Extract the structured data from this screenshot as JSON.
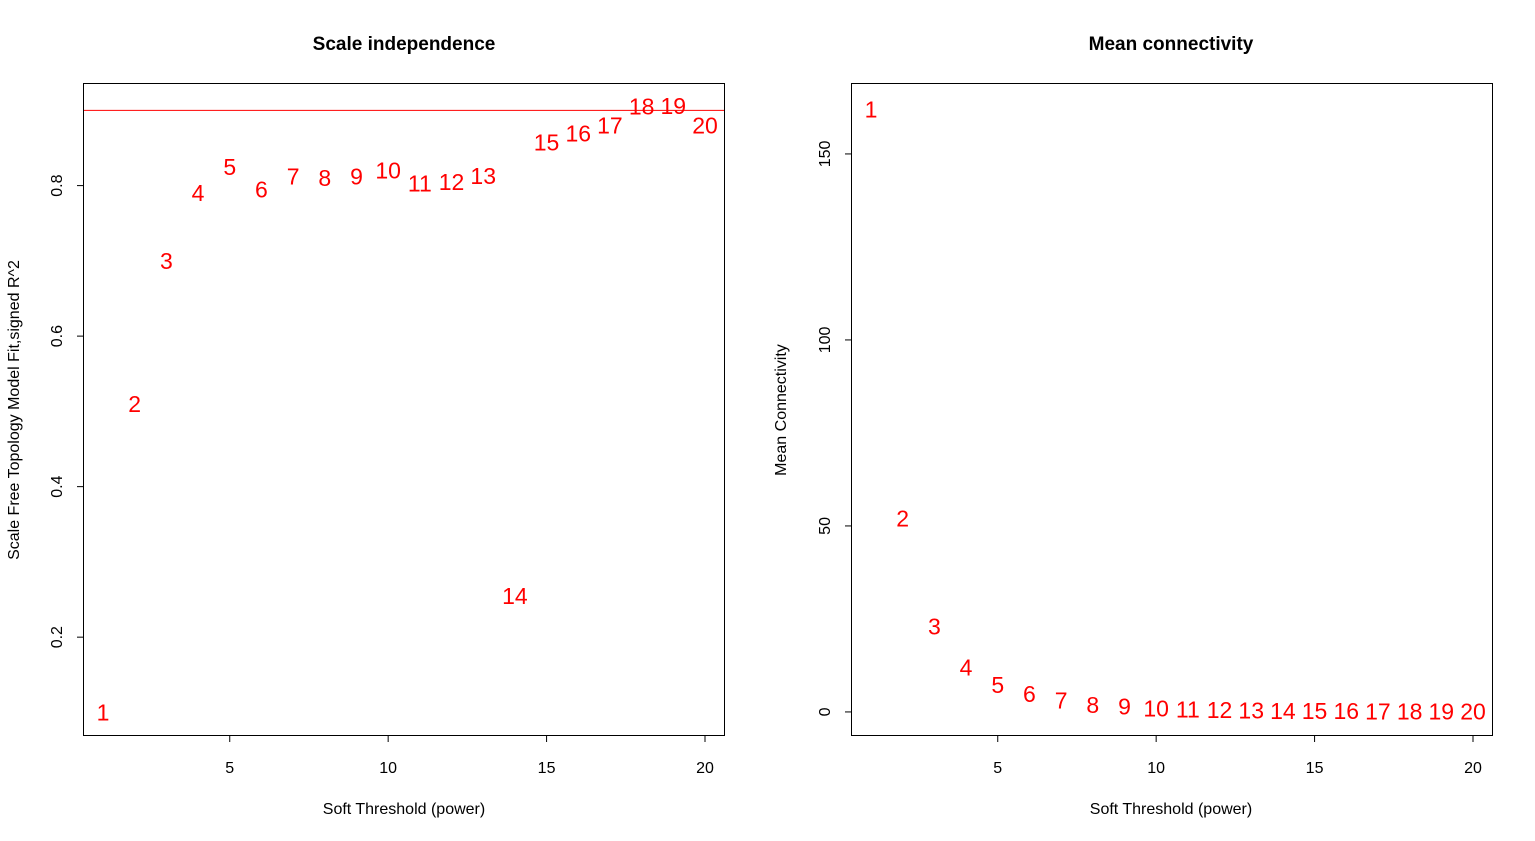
{
  "colors": {
    "points": "#ff0000",
    "refline": "#ff0000",
    "axis": "#000000"
  },
  "chart_data": [
    {
      "type": "scatter",
      "title": "Scale independence",
      "xlabel": "Soft Threshold (power)",
      "ylabel": "Scale Free Topology Model Fit,signed R^2",
      "xlim": [
        0.4,
        20.6
      ],
      "ylim": [
        0.07,
        0.935
      ],
      "xticks": [
        5,
        10,
        15,
        20
      ],
      "yticks": [
        0.2,
        0.4,
        0.6,
        0.8
      ],
      "ytick_labels": [
        "0.2",
        "0.4",
        "0.6",
        "0.8"
      ],
      "reference_line_y": 0.9,
      "grid": false,
      "marker": "text labels (power numbers)",
      "points": [
        {
          "label": "1",
          "x": 1,
          "y": 0.1
        },
        {
          "label": "2",
          "x": 2,
          "y": 0.51
        },
        {
          "label": "3",
          "x": 3,
          "y": 0.7
        },
        {
          "label": "4",
          "x": 4,
          "y": 0.79
        },
        {
          "label": "5",
          "x": 5,
          "y": 0.825
        },
        {
          "label": "6",
          "x": 6,
          "y": 0.795
        },
        {
          "label": "7",
          "x": 7,
          "y": 0.812
        },
        {
          "label": "8",
          "x": 8,
          "y": 0.81
        },
        {
          "label": "9",
          "x": 9,
          "y": 0.812
        },
        {
          "label": "10",
          "x": 10,
          "y": 0.82
        },
        {
          "label": "11",
          "x": 11,
          "y": 0.803
        },
        {
          "label": "12",
          "x": 12,
          "y": 0.805
        },
        {
          "label": "13",
          "x": 13,
          "y": 0.813
        },
        {
          "label": "14",
          "x": 14,
          "y": 0.255
        },
        {
          "label": "15",
          "x": 15,
          "y": 0.857
        },
        {
          "label": "16",
          "x": 16,
          "y": 0.869
        },
        {
          "label": "17",
          "x": 17,
          "y": 0.88
        },
        {
          "label": "18",
          "x": 18,
          "y": 0.905
        },
        {
          "label": "19",
          "x": 19,
          "y": 0.906
        },
        {
          "label": "20",
          "x": 20,
          "y": 0.88
        }
      ]
    },
    {
      "type": "scatter",
      "title": "Mean connectivity",
      "xlabel": "Soft Threshold (power)",
      "ylabel": "Mean Connectivity",
      "xlim": [
        0.4,
        20.6
      ],
      "ylim": [
        -6.2,
        168.8
      ],
      "xticks": [
        5,
        10,
        15,
        20
      ],
      "yticks": [
        0,
        50,
        100,
        150
      ],
      "ytick_labels": [
        "0",
        "50",
        "100",
        "150"
      ],
      "grid": false,
      "marker": "text labels (power numbers)",
      "points": [
        {
          "label": "1",
          "x": 1,
          "y": 162
        },
        {
          "label": "2",
          "x": 2,
          "y": 52
        },
        {
          "label": "3",
          "x": 3,
          "y": 23
        },
        {
          "label": "4",
          "x": 4,
          "y": 12
        },
        {
          "label": "5",
          "x": 5,
          "y": 7.3
        },
        {
          "label": "6",
          "x": 6,
          "y": 4.8
        },
        {
          "label": "7",
          "x": 7,
          "y": 3.1
        },
        {
          "label": "8",
          "x": 8,
          "y": 1.9
        },
        {
          "label": "9",
          "x": 9,
          "y": 1.4
        },
        {
          "label": "10",
          "x": 10,
          "y": 0.9
        },
        {
          "label": "11",
          "x": 11,
          "y": 0.7
        },
        {
          "label": "12",
          "x": 12,
          "y": 0.5
        },
        {
          "label": "13",
          "x": 13,
          "y": 0.4
        },
        {
          "label": "14",
          "x": 14,
          "y": 0.3
        },
        {
          "label": "15",
          "x": 15,
          "y": 0.25
        },
        {
          "label": "16",
          "x": 16,
          "y": 0.2
        },
        {
          "label": "17",
          "x": 17,
          "y": 0.15
        },
        {
          "label": "18",
          "x": 18,
          "y": 0.12
        },
        {
          "label": "19",
          "x": 19,
          "y": 0.1
        },
        {
          "label": "20",
          "x": 20,
          "y": 0.08
        }
      ]
    }
  ]
}
